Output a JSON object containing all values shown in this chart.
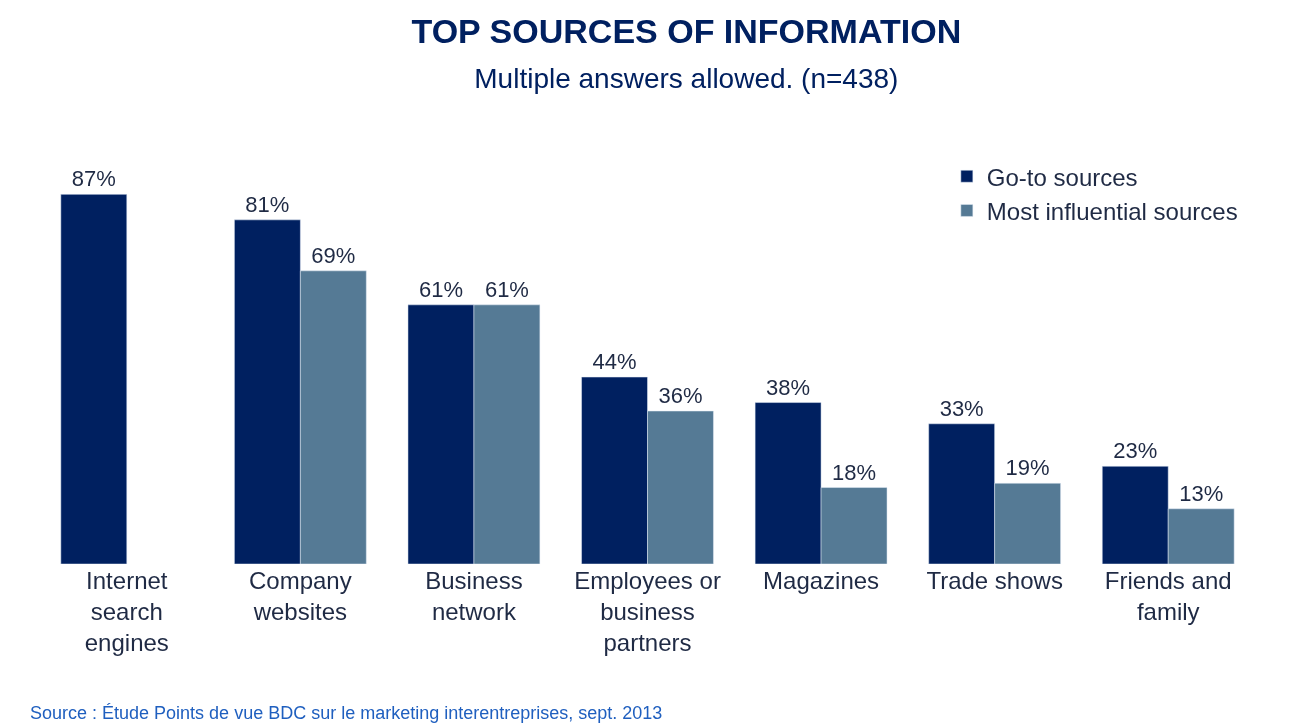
{
  "chart_data": {
    "type": "bar",
    "title": "TOP SOURCES OF INFORMATION",
    "subtitle": "Multiple answers allowed. (n=438)",
    "categories": [
      "Internet search engines",
      "Company websites",
      "Business network",
      "Employees or business partners",
      "Magazines",
      "Trade shows",
      "Friends and family"
    ],
    "series": [
      {
        "name": "Go-to sources",
        "color": "#002060",
        "values": [
          87,
          81,
          61,
          44,
          38,
          33,
          23
        ],
        "value_labels": [
          "87%",
          "81%",
          "61%",
          "44%",
          "38%",
          "33%",
          "23%"
        ]
      },
      {
        "name": "Most influential sources",
        "color": "#557a95",
        "values": [
          null,
          69,
          61,
          36,
          18,
          19,
          13
        ],
        "value_labels": [
          null,
          "69%",
          "61%",
          "36%",
          "18%",
          "19%",
          "13%"
        ]
      }
    ],
    "legend": "top right",
    "annotations": [
      "Source : Étude Points de vue BDC sur le marketing interentreprises, sept. 2013"
    ]
  }
}
